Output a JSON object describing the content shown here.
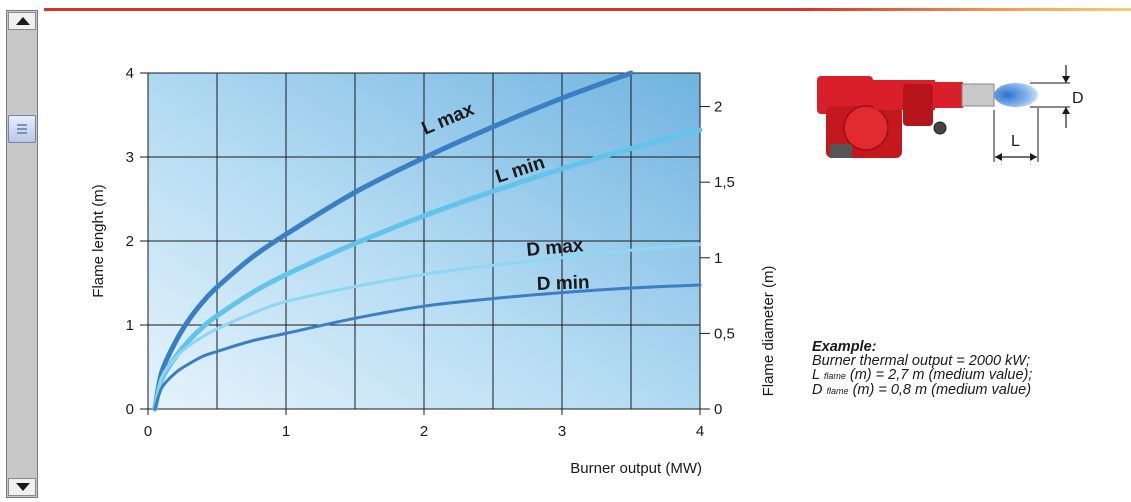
{
  "chart_data": {
    "type": "line",
    "x_label": "Burner output (MW)",
    "y_label": "Flame lenght  (m)",
    "y2_label": "Flame diameter (m)",
    "xlim": [
      0,
      4
    ],
    "ylim": [
      0,
      4
    ],
    "y2lim": [
      0,
      2.222
    ],
    "x_ticks": [
      "0",
      "1",
      "2",
      "3",
      "4"
    ],
    "y_ticks": [
      "0",
      "1",
      "2",
      "3",
      "4"
    ],
    "y2_ticks": [
      {
        "value": 0,
        "label": "0"
      },
      {
        "value": 0.5,
        "label": "0,5"
      },
      {
        "value": 1,
        "label": "1"
      },
      {
        "value": 1.5,
        "label": "1,5"
      },
      {
        "value": 2,
        "label": "2"
      }
    ],
    "grid": true,
    "series": [
      {
        "name": "L max",
        "axis": "left",
        "color": "#3a7fc4",
        "x": [
          0.05,
          0.1,
          0.2,
          0.3,
          0.4,
          0.5,
          0.75,
          1.0,
          1.5,
          2.0,
          2.5,
          3.0,
          3.5
        ],
        "y": [
          0.0,
          0.44,
          0.8,
          1.07,
          1.28,
          1.45,
          1.8,
          2.08,
          2.58,
          2.99,
          3.36,
          3.7,
          4.0
        ]
      },
      {
        "name": "L min",
        "axis": "left",
        "color": "#62c4ea",
        "x": [
          0.05,
          0.1,
          0.2,
          0.3,
          0.4,
          0.5,
          0.75,
          1.0,
          1.5,
          2.0,
          2.5,
          3.0,
          3.5,
          4.0
        ],
        "y": [
          0.0,
          0.35,
          0.62,
          0.82,
          0.98,
          1.11,
          1.38,
          1.6,
          1.97,
          2.3,
          2.59,
          2.86,
          3.1,
          3.32
        ]
      },
      {
        "name": "D max",
        "axis": "right",
        "color": "#8fd6f2",
        "x": [
          0.05,
          0.1,
          0.2,
          0.3,
          0.4,
          0.5,
          0.75,
          1.0,
          1.5,
          2.0,
          2.5,
          3.0,
          3.5,
          4.0
        ],
        "y": [
          0.0,
          0.21,
          0.34,
          0.42,
          0.48,
          0.53,
          0.63,
          0.71,
          0.81,
          0.89,
          0.95,
          1.0,
          1.05,
          1.09
        ]
      },
      {
        "name": "D min",
        "axis": "right",
        "color": "#3a7fc4",
        "x": [
          0.05,
          0.1,
          0.2,
          0.3,
          0.4,
          0.5,
          0.75,
          1.0,
          1.5,
          2.0,
          2.5,
          3.0,
          3.5,
          4.0
        ],
        "y": [
          0.0,
          0.14,
          0.24,
          0.3,
          0.35,
          0.38,
          0.45,
          0.5,
          0.6,
          0.68,
          0.73,
          0.77,
          0.8,
          0.82
        ]
      }
    ],
    "curve_labels": [
      {
        "text": "L max",
        "series": 0
      },
      {
        "text": "L min",
        "series": 1
      },
      {
        "text": "D max",
        "series": 2
      },
      {
        "text": "D min",
        "series": 3
      }
    ]
  },
  "diagram": {
    "diameter_label": "D",
    "length_label": "L",
    "burner_color": "#d9202a",
    "flame_color": "#8ab8ee"
  },
  "example": {
    "title": "Example:",
    "line1": "Burner thermal output = 2000 kW;",
    "l_prefix": "L",
    "l_sub": "flame",
    "l_rest": "(m) = 2,7 m (medium value);",
    "d_prefix": "D",
    "d_sub": "flame",
    "d_rest": "(m) = 0,8 m (medium value)"
  },
  "colors": {
    "grid_bg_left": "#dceef9",
    "grid_bg_right": "#7fbde6",
    "header_bar": "#d8332a"
  },
  "scrollbar": {
    "up_icon": "arrow-up-icon",
    "down_icon": "arrow-down-icon"
  }
}
